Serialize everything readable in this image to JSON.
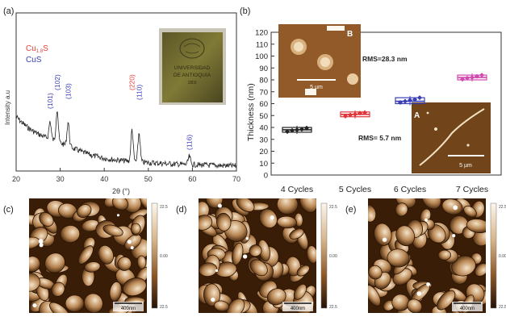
{
  "figure": {
    "panel_labels": [
      "(a)",
      "(b)",
      "(c)",
      "(d)",
      "(e)"
    ]
  },
  "chart_data": [
    {
      "type": "line",
      "panel": "(a)",
      "xlabel": "2θ (°)",
      "ylabel": "Intensity a.u",
      "xlim": [
        20,
        70
      ],
      "x_ticks": [
        "20",
        "30",
        "40",
        "50",
        "60",
        "70"
      ],
      "legend": [
        {
          "label_main": "Cu",
          "label_sub": "1.8",
          "label_tail": "S",
          "color": "#e8413c"
        },
        {
          "label_main": "CuS",
          "label_sub": "",
          "label_tail": "",
          "color": "#3a3fb5"
        }
      ],
      "peaks": [
        {
          "two_theta": 27.7,
          "label": "(101)",
          "color": "#3a3fb5"
        },
        {
          "two_theta": 29.3,
          "label": "(102)",
          "color": "#3a3fb5"
        },
        {
          "two_theta": 31.8,
          "label": "(103)",
          "color": "#3a3fb5"
        },
        {
          "two_theta": 46.3,
          "label": "(220)",
          "color": "#e8413c"
        },
        {
          "two_theta": 47.9,
          "label": "(110)",
          "color": "#3a3fb5"
        },
        {
          "two_theta": 59.3,
          "label": "(116)",
          "color": "#3a3fb5"
        }
      ],
      "inset_text": [
        "UNIVERSIDAD",
        "DE ANTIOQUIA",
        "1803"
      ],
      "line_color": "#222222"
    },
    {
      "type": "scatter",
      "panel": "(b)",
      "ylabel": "Thickness (nm)",
      "ylim": [
        0,
        120
      ],
      "y_ticks": [
        "0",
        "10",
        "20",
        "30",
        "40",
        "50",
        "60",
        "70",
        "80",
        "90",
        "100",
        "110",
        "120"
      ],
      "categories": [
        "4 Cycles",
        "5 Cycles",
        "6 Cycles",
        "7 Cycles"
      ],
      "series": [
        {
          "category": "4 Cycles",
          "mean": 38,
          "min": 36,
          "max": 40,
          "color": "#222222",
          "points": [
            36.5,
            37.5,
            38,
            38.5,
            39.5
          ]
        },
        {
          "category": "5 Cycles",
          "mean": 51,
          "min": 49,
          "max": 53,
          "color": "#e0343a",
          "points": [
            49.5,
            50.5,
            51,
            52,
            52.5
          ]
        },
        {
          "category": "6 Cycles",
          "mean": 62,
          "min": 60,
          "max": 65,
          "color": "#3a3fb5",
          "points": [
            61,
            62,
            63,
            63.5,
            65
          ]
        },
        {
          "category": "7 Cycles",
          "mean": 82,
          "min": 80,
          "max": 84,
          "color": "#d04ab0",
          "points": [
            80.5,
            81.5,
            82,
            83,
            84
          ]
        }
      ],
      "insets": [
        {
          "letter": "B",
          "rms": "RMS=28.3 nm",
          "scale": "5 µm"
        },
        {
          "letter": "A",
          "rms": "RMS= 5.7 nm",
          "scale": "5 µm"
        }
      ]
    }
  ],
  "afm_panels": [
    {
      "label": "(c)",
      "scale_top": "22.5",
      "scale_mid": "0.00",
      "scale_bottom": "22.5",
      "scalebar": "400nm"
    },
    {
      "label": "(d)",
      "scale_top": "22.5",
      "scale_mid": "0.00",
      "scale_bottom": "22.5",
      "scalebar": "400nm"
    },
    {
      "label": "(e)",
      "scale_top": "22.5",
      "scale_mid": "0.00",
      "scale_bottom": "22.5",
      "scalebar": "400nm"
    }
  ]
}
